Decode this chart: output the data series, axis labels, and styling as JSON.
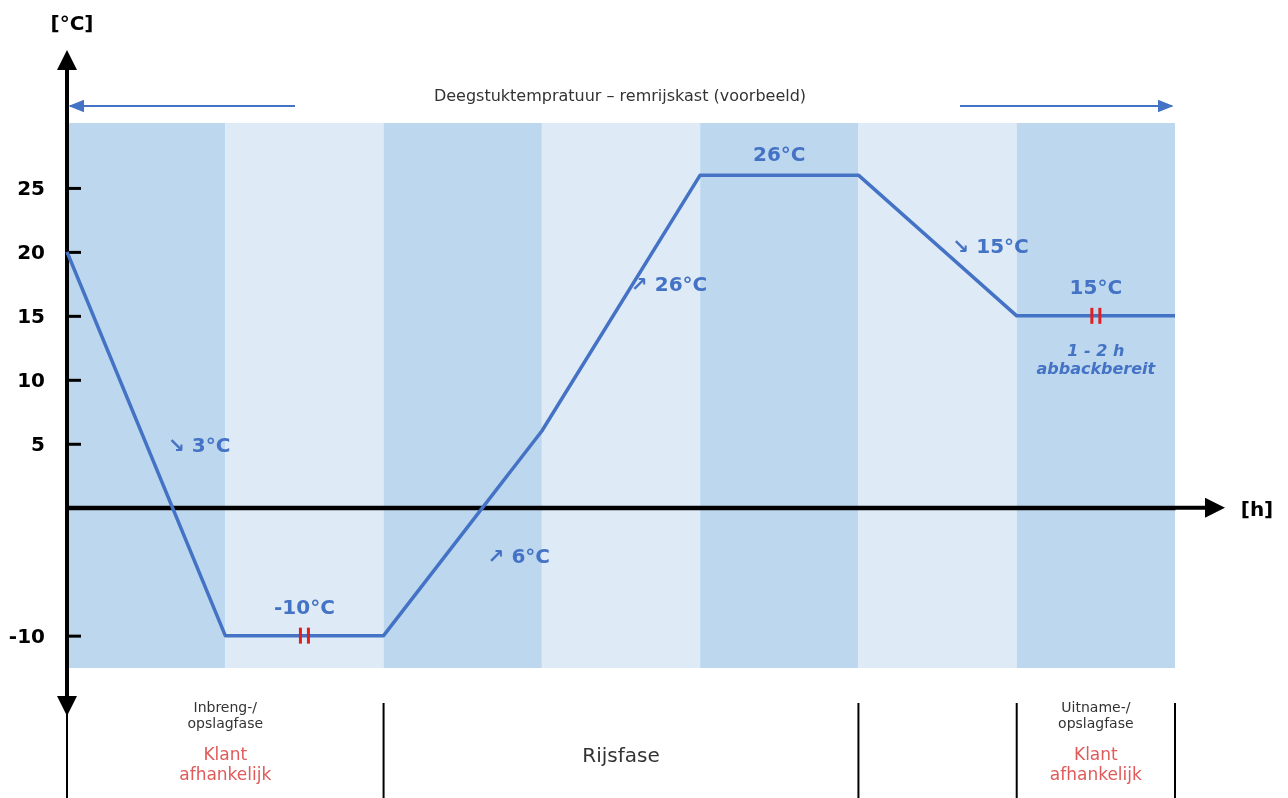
{
  "chart_data": {
    "type": "line",
    "ylabel": "[°C]",
    "categories": [
      null,
      null,
      null,
      null,
      null,
      null,
      null,
      null
    ],
    "values": [
      20,
      -10,
      -10,
      6,
      26,
      26,
      15,
      15
    ],
    "color": "#4472c4",
    "ylim": [
      -15.5,
      35
    ],
    "yticks": [
      -10,
      5,
      10,
      15,
      20,
      25
    ],
    "grid": false,
    "marker": "none",
    "line_style": "solid",
    "annotations": [
      "Deegstuktempratuur – remrijskast (voorbeeld)",
      "↘ 3°C",
      "-10°C",
      "↗ 6°C",
      "↗ 26°C",
      "26°C",
      "↘ 15°C",
      "15°C",
      "1 - 2 h\nabbackbereit",
      "Inbreng-/\nopslagfase",
      "Klant\nafhankelijk",
      "Rijsfase",
      "Uitname-/\nopslagfase",
      "Klant\nafhankelijk",
      "[h]"
    ]
  }
}
